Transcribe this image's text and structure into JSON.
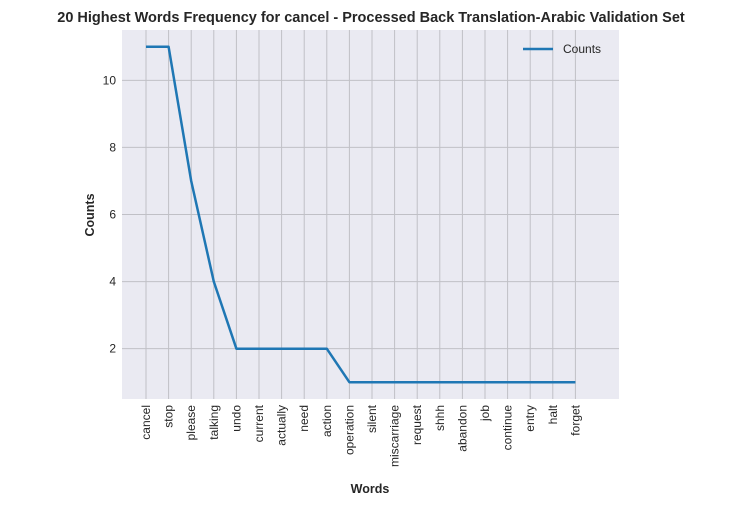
{
  "chart_data": {
    "type": "line",
    "title": "20 Highest Words Frequency for cancel - Processed Back Translation-Arabic Validation Set",
    "xlabel": "Words",
    "ylabel": "Counts",
    "categories": [
      "cancel",
      "stop",
      "please",
      "talking",
      "undo",
      "current",
      "actually",
      "need",
      "action",
      "operation",
      "silent",
      "miscarriage",
      "request",
      "shhh",
      "abandon",
      "job",
      "continue",
      "entry",
      "halt",
      "forget"
    ],
    "series": [
      {
        "name": "Counts",
        "values": [
          11,
          11,
          7,
          4,
          2,
          2,
          2,
          2,
          2,
          1,
          1,
          1,
          1,
          1,
          1,
          1,
          1,
          1,
          1,
          1
        ]
      }
    ],
    "yticks": [
      2,
      4,
      6,
      8,
      10
    ],
    "ylim": [
      0.5,
      11.5
    ],
    "grid": true,
    "legend_position": "top-right",
    "colors": {
      "line": "#1f77b4",
      "plot_bg": "#eaeaf2",
      "grid": "#c0c0c6"
    }
  }
}
